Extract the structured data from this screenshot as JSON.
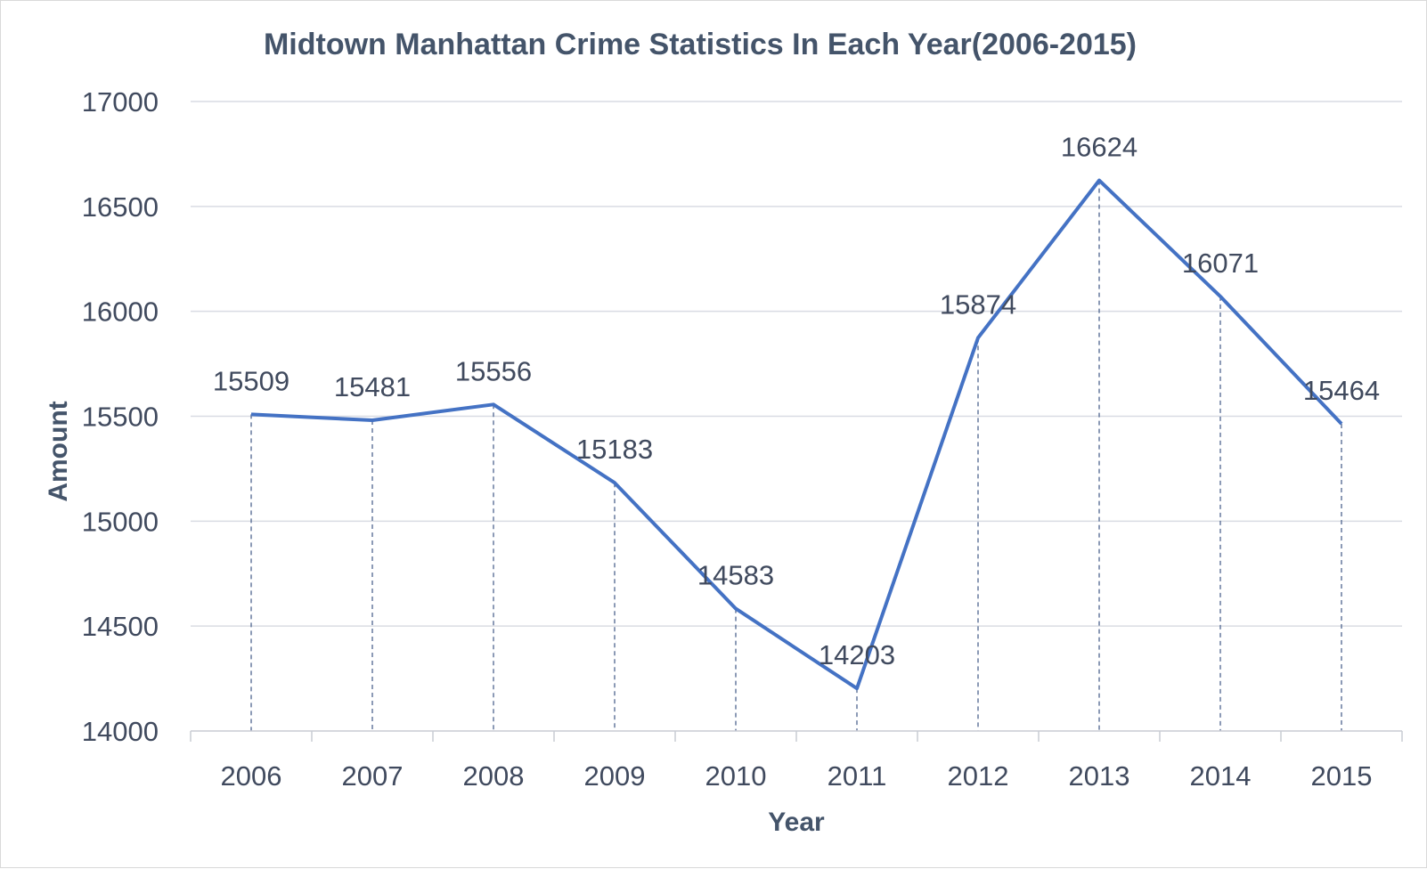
{
  "chart_data": {
    "type": "line",
    "title": "Midtown Manhattan Crime Statistics In Each Year(2006-2015)",
    "xlabel": "Year",
    "ylabel": "Amount",
    "categories": [
      "2006",
      "2007",
      "2008",
      "2009",
      "2010",
      "2011",
      "2012",
      "2013",
      "2014",
      "2015"
    ],
    "values": [
      15509,
      15481,
      15556,
      15183,
      14583,
      14203,
      15874,
      16624,
      16071,
      15464
    ],
    "ylim": [
      14000,
      17000
    ],
    "yticks": [
      14000,
      14500,
      15000,
      15500,
      16000,
      16500,
      17000
    ],
    "grid": true,
    "drop_lines": true,
    "data_labels": true,
    "legend": "none",
    "colors": {
      "series": "#4472c4",
      "text": "#404a5e",
      "title": "#44546a"
    }
  }
}
